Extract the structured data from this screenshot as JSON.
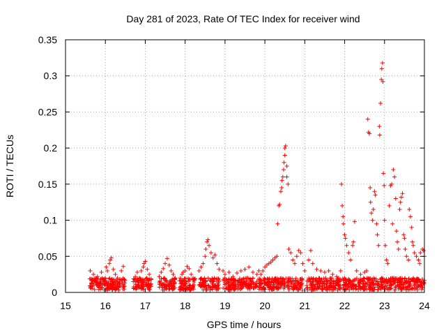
{
  "chart_data": {
    "type": "scatter",
    "title": "Day 281 of 2023, Rate Of TEC Index for receiver wind",
    "xlabel": "GPS time / hours",
    "ylabel": "ROTI / TECUs",
    "xlim": [
      15,
      24
    ],
    "ylim": [
      0,
      0.35
    ],
    "xticks": [
      15,
      16,
      17,
      18,
      19,
      20,
      21,
      22,
      23,
      24
    ],
    "yticks": [
      0,
      0.05,
      0.1,
      0.15,
      0.2,
      0.25,
      0.3,
      0.35
    ],
    "xtick_labels": [
      "15",
      "16",
      "17",
      "18",
      "19",
      "20",
      "21",
      "22",
      "23",
      "24"
    ],
    "ytick_labels": [
      "0",
      "0.05",
      "0.1",
      "0.15",
      "0.2",
      "0.25",
      "0.3",
      "0.35"
    ],
    "grid": true,
    "marker": "+",
    "color": "#ff0000",
    "series": [
      {
        "name": "ROTI",
        "points": [
          [
            15.62,
            0.03
          ],
          [
            15.65,
            0.012
          ],
          [
            15.7,
            0.025
          ],
          [
            15.75,
            0.018
          ],
          [
            15.8,
            0.022
          ],
          [
            15.85,
            0.01
          ],
          [
            15.9,
            0.028
          ],
          [
            15.95,
            0.015
          ],
          [
            16.0,
            0.02
          ],
          [
            16.02,
            0.035
          ],
          [
            16.05,
            0.03
          ],
          [
            16.1,
            0.04
          ],
          [
            16.12,
            0.045
          ],
          [
            16.15,
            0.048
          ],
          [
            16.2,
            0.032
          ],
          [
            16.25,
            0.025
          ],
          [
            16.3,
            0.02
          ],
          [
            16.35,
            0.018
          ],
          [
            16.4,
            0.03
          ],
          [
            16.45,
            0.036
          ],
          [
            16.7,
            0.015
          ],
          [
            16.75,
            0.022
          ],
          [
            16.8,
            0.028
          ],
          [
            16.85,
            0.02
          ],
          [
            16.9,
            0.03
          ],
          [
            16.95,
            0.035
          ],
          [
            16.97,
            0.04
          ],
          [
            17.0,
            0.043
          ],
          [
            17.05,
            0.032
          ],
          [
            17.1,
            0.025
          ],
          [
            17.15,
            0.018
          ],
          [
            17.35,
            0.022
          ],
          [
            17.4,
            0.028
          ],
          [
            17.45,
            0.033
          ],
          [
            17.5,
            0.04
          ],
          [
            17.55,
            0.047
          ],
          [
            17.6,
            0.038
          ],
          [
            17.65,
            0.03
          ],
          [
            17.7,
            0.025
          ],
          [
            17.75,
            0.02
          ],
          [
            17.88,
            0.02
          ],
          [
            17.92,
            0.025
          ],
          [
            17.95,
            0.028
          ],
          [
            18.0,
            0.03
          ],
          [
            18.05,
            0.036
          ],
          [
            18.1,
            0.033
          ],
          [
            18.15,
            0.025
          ],
          [
            18.2,
            0.02
          ],
          [
            18.35,
            0.03
          ],
          [
            18.4,
            0.035
          ],
          [
            18.45,
            0.04
          ],
          [
            18.5,
            0.05
          ],
          [
            18.52,
            0.06
          ],
          [
            18.55,
            0.07
          ],
          [
            18.57,
            0.073
          ],
          [
            18.6,
            0.065
          ],
          [
            18.65,
            0.055
          ],
          [
            18.7,
            0.048
          ],
          [
            18.75,
            0.052
          ],
          [
            18.8,
            0.04
          ],
          [
            18.85,
            0.032
          ],
          [
            18.95,
            0.03
          ],
          [
            19.0,
            0.025
          ],
          [
            19.1,
            0.028
          ],
          [
            19.2,
            0.022
          ],
          [
            19.3,
            0.027
          ],
          [
            19.4,
            0.03
          ],
          [
            19.5,
            0.032
          ],
          [
            19.6,
            0.035
          ],
          [
            19.7,
            0.028
          ],
          [
            19.8,
            0.025
          ],
          [
            19.85,
            0.03
          ],
          [
            19.9,
            0.025
          ],
          [
            19.95,
            0.03
          ],
          [
            20.0,
            0.035
          ],
          [
            20.05,
            0.038
          ],
          [
            20.1,
            0.04
          ],
          [
            20.15,
            0.042
          ],
          [
            20.2,
            0.045
          ],
          [
            20.25,
            0.048
          ],
          [
            20.3,
            0.05
          ],
          [
            20.32,
            0.095
          ],
          [
            20.35,
            0.12
          ],
          [
            20.37,
            0.122
          ],
          [
            20.4,
            0.14
          ],
          [
            20.42,
            0.145
          ],
          [
            20.43,
            0.155
          ],
          [
            20.45,
            0.16
          ],
          [
            20.47,
            0.17
          ],
          [
            20.48,
            0.18
          ],
          [
            20.5,
            0.19
          ],
          [
            20.5,
            0.2
          ],
          [
            20.52,
            0.203
          ],
          [
            20.55,
            0.175
          ],
          [
            20.55,
            0.16
          ],
          [
            20.58,
            0.15
          ],
          [
            20.6,
            0.06
          ],
          [
            20.65,
            0.055
          ],
          [
            20.7,
            0.045
          ],
          [
            20.75,
            0.04
          ],
          [
            20.8,
            0.05
          ],
          [
            20.85,
            0.058
          ],
          [
            20.9,
            0.055
          ],
          [
            20.95,
            0.04
          ],
          [
            21.0,
            0.03
          ],
          [
            21.1,
            0.045
          ],
          [
            21.15,
            0.058
          ],
          [
            21.2,
            0.04
          ],
          [
            21.3,
            0.032
          ],
          [
            21.4,
            0.03
          ],
          [
            21.5,
            0.028
          ],
          [
            21.6,
            0.03
          ],
          [
            21.7,
            0.025
          ],
          [
            21.8,
            0.022
          ],
          [
            21.85,
            0.02
          ],
          [
            21.9,
            0.03
          ],
          [
            21.92,
            0.15
          ],
          [
            21.94,
            0.12
          ],
          [
            21.96,
            0.105
          ],
          [
            21.97,
            0.095
          ],
          [
            22.0,
            0.08
          ],
          [
            22.02,
            0.075
          ],
          [
            22.05,
            0.065
          ],
          [
            22.1,
            0.055
          ],
          [
            22.15,
            0.045
          ],
          [
            22.2,
            0.065
          ],
          [
            22.22,
            0.07
          ],
          [
            22.25,
            0.098
          ],
          [
            22.3,
            0.03
          ],
          [
            22.4,
            0.025
          ],
          [
            22.5,
            0.028
          ],
          [
            22.55,
            0.03
          ],
          [
            22.58,
            0.24
          ],
          [
            22.6,
            0.222
          ],
          [
            22.62,
            0.22
          ],
          [
            22.64,
            0.145
          ],
          [
            22.65,
            0.125
          ],
          [
            22.67,
            0.11
          ],
          [
            22.7,
            0.1
          ],
          [
            22.72,
            0.115
          ],
          [
            22.75,
            0.14
          ],
          [
            22.77,
            0.135
          ],
          [
            22.8,
            0.095
          ],
          [
            22.82,
            0.08
          ],
          [
            22.85,
            0.065
          ],
          [
            22.87,
            0.23
          ],
          [
            22.88,
            0.218
          ],
          [
            22.9,
            0.262
          ],
          [
            22.92,
            0.295
          ],
          [
            22.93,
            0.31
          ],
          [
            22.95,
            0.318
          ],
          [
            22.96,
            0.292
          ],
          [
            22.97,
            0.165
          ],
          [
            22.99,
            0.148
          ],
          [
            23.0,
            0.1
          ],
          [
            23.02,
            0.065
          ],
          [
            23.05,
            0.045
          ],
          [
            23.08,
            0.04
          ],
          [
            23.12,
            0.12
          ],
          [
            23.15,
            0.148
          ],
          [
            23.18,
            0.15
          ],
          [
            23.2,
            0.095
          ],
          [
            23.22,
            0.17
          ],
          [
            23.25,
            0.16
          ],
          [
            23.28,
            0.13
          ],
          [
            23.3,
            0.085
          ],
          [
            23.32,
            0.07
          ],
          [
            23.35,
            0.06
          ],
          [
            23.38,
            0.115
          ],
          [
            23.4,
            0.125
          ],
          [
            23.42,
            0.132
          ],
          [
            23.45,
            0.137
          ],
          [
            23.48,
            0.08
          ],
          [
            23.5,
            0.075
          ],
          [
            23.52,
            0.06
          ],
          [
            23.55,
            0.05
          ],
          [
            23.6,
            0.045
          ],
          [
            23.62,
            0.115
          ],
          [
            23.65,
            0.105
          ],
          [
            23.68,
            0.09
          ],
          [
            23.7,
            0.07
          ],
          [
            23.72,
            0.065
          ],
          [
            23.75,
            0.055
          ],
          [
            23.8,
            0.05
          ],
          [
            23.85,
            0.045
          ],
          [
            23.88,
            0.04
          ],
          [
            23.9,
            0.055
          ],
          [
            23.95,
            0.06
          ],
          [
            23.98,
            0.058
          ],
          [
            24.0,
            0.05
          ]
        ]
      }
    ],
    "dense_band": {
      "segments": [
        [
          15.6,
          16.5
        ],
        [
          16.7,
          17.15
        ],
        [
          17.35,
          17.75
        ],
        [
          17.85,
          18.25
        ],
        [
          18.35,
          18.85
        ],
        [
          18.95,
          19.8
        ],
        [
          19.85,
          20.95
        ],
        [
          21.05,
          21.9
        ],
        [
          21.95,
          24.0
        ]
      ],
      "ymin": 0.003,
      "ymax": 0.02
    }
  }
}
